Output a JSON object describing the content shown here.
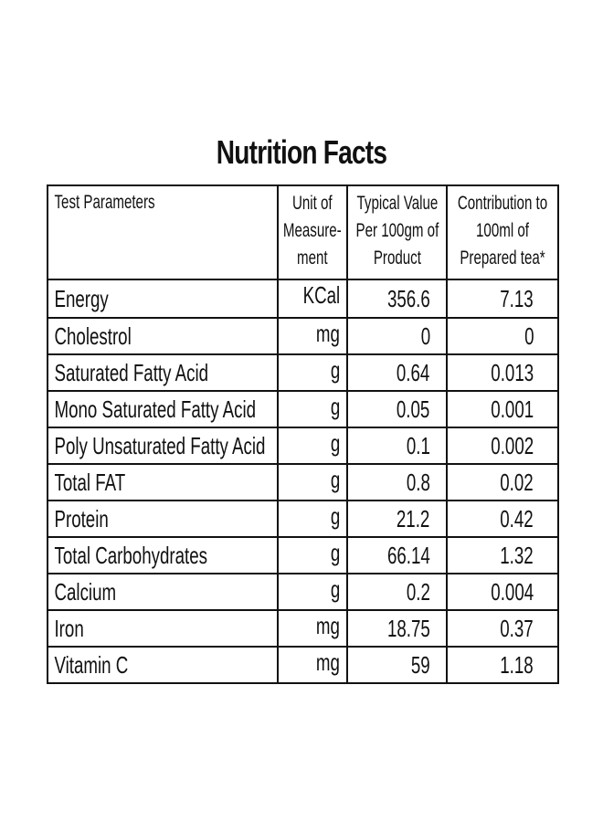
{
  "title": "Nutrition Facts",
  "table": {
    "headers": {
      "parameter": "Test Parameters",
      "unit": "Unit of\nMeasure-\nment",
      "typical_value": "Typical Value\nPer 100gm of\nProduct",
      "contribution": "Contribution to\n100ml of\nPrepared tea*"
    },
    "rows": [
      {
        "parameter": "Energy",
        "unit": "KCal",
        "value": "356.6",
        "contribution": "7.13"
      },
      {
        "parameter": "Cholestrol",
        "unit": "mg",
        "value": "0",
        "contribution": "0"
      },
      {
        "parameter": "Saturated Fatty Acid",
        "unit": "g",
        "value": "0.64",
        "contribution": "0.013"
      },
      {
        "parameter": "Mono Saturated Fatty Acid",
        "unit": "g",
        "value": "0.05",
        "contribution": "0.001"
      },
      {
        "parameter": "Poly Unsaturated Fatty Acid",
        "unit": "g",
        "value": "0.1",
        "contribution": "0.002"
      },
      {
        "parameter": "Total FAT",
        "unit": "g",
        "value": "0.8",
        "contribution": "0.02"
      },
      {
        "parameter": "Protein",
        "unit": "g",
        "value": "21.2",
        "contribution": "0.42"
      },
      {
        "parameter": "Total Carbohydrates",
        "unit": "g",
        "value": "66.14",
        "contribution": "1.32"
      },
      {
        "parameter": "Calcium",
        "unit": "g",
        "value": "0.2",
        "contribution": "0.004"
      },
      {
        "parameter": "Iron",
        "unit": "mg",
        "value": "18.75",
        "contribution": "0.37"
      },
      {
        "parameter": "Vitamin C",
        "unit": "mg",
        "value": "59",
        "contribution": "1.18"
      }
    ]
  }
}
